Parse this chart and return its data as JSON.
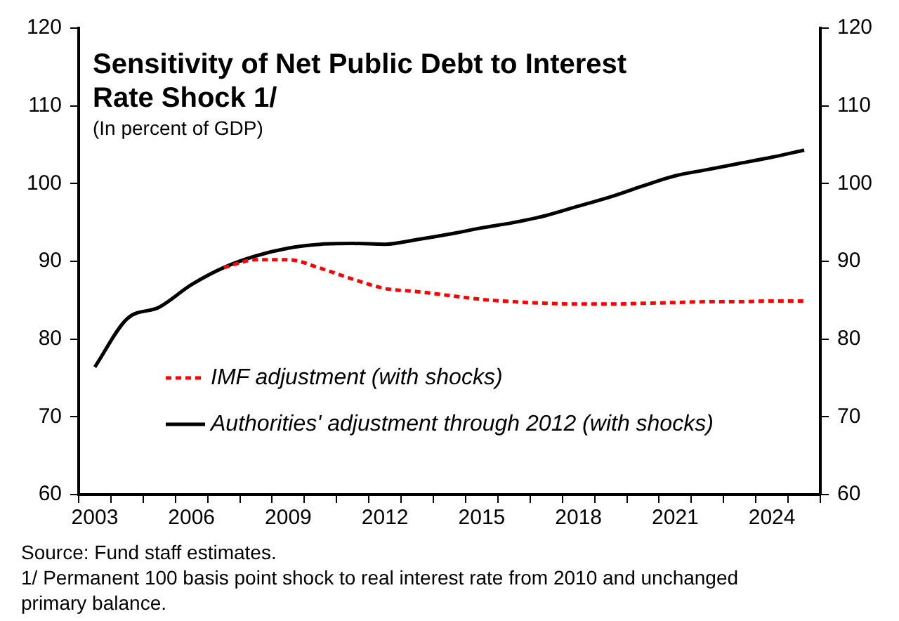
{
  "chart_data": {
    "type": "line",
    "title": "Sensitivity of Net Public Debt to Interest Rate Shock 1/",
    "subtitle": "(In percent of GDP)",
    "categories": [
      "2003",
      null,
      null,
      "2006",
      null,
      null,
      "2009",
      null,
      null,
      "2012",
      null,
      null,
      "2015",
      null,
      null,
      "2018",
      null,
      null,
      "2021",
      null,
      null,
      "2024",
      null
    ],
    "series": [
      {
        "name": "IMF adjustment (with shocks)",
        "color": "#ff0000",
        "line_style": "dashed",
        "values": [
          null,
          null,
          null,
          null,
          89.2,
          90.2,
          90.2,
          89.1,
          87.7,
          86.5,
          86.1,
          85.6,
          85.1,
          84.8,
          84.6,
          84.5,
          84.5,
          84.6,
          84.7,
          84.8,
          84.8,
          84.9,
          84.9
        ]
      },
      {
        "name": "Authorities' adjustment through 2012 (with shocks)",
        "color": "#000000",
        "line_style": "solid",
        "values": [
          76.4,
          82.6,
          84.1,
          87.0,
          89.2,
          90.7,
          91.7,
          92.2,
          92.3,
          92.2,
          92.8,
          93.5,
          94.3,
          95.0,
          95.9,
          97.1,
          98.3,
          99.7,
          101.0,
          101.8,
          102.6,
          103.4,
          104.3
        ]
      }
    ],
    "ylim": [
      60,
      120
    ],
    "yticks": [
      60,
      70,
      80,
      90,
      100,
      110,
      120
    ],
    "y2lim": [
      60,
      120
    ],
    "y2ticks": [
      60,
      70,
      80,
      90,
      100,
      110,
      120
    ],
    "grid": false,
    "legend": "bottom left",
    "marker": "none",
    "annotations": [
      "Source: Fund staff estimates.",
      "1/ Permanent 100 basis point shock to real interest rate from 2010 and unchanged primary balance."
    ]
  }
}
